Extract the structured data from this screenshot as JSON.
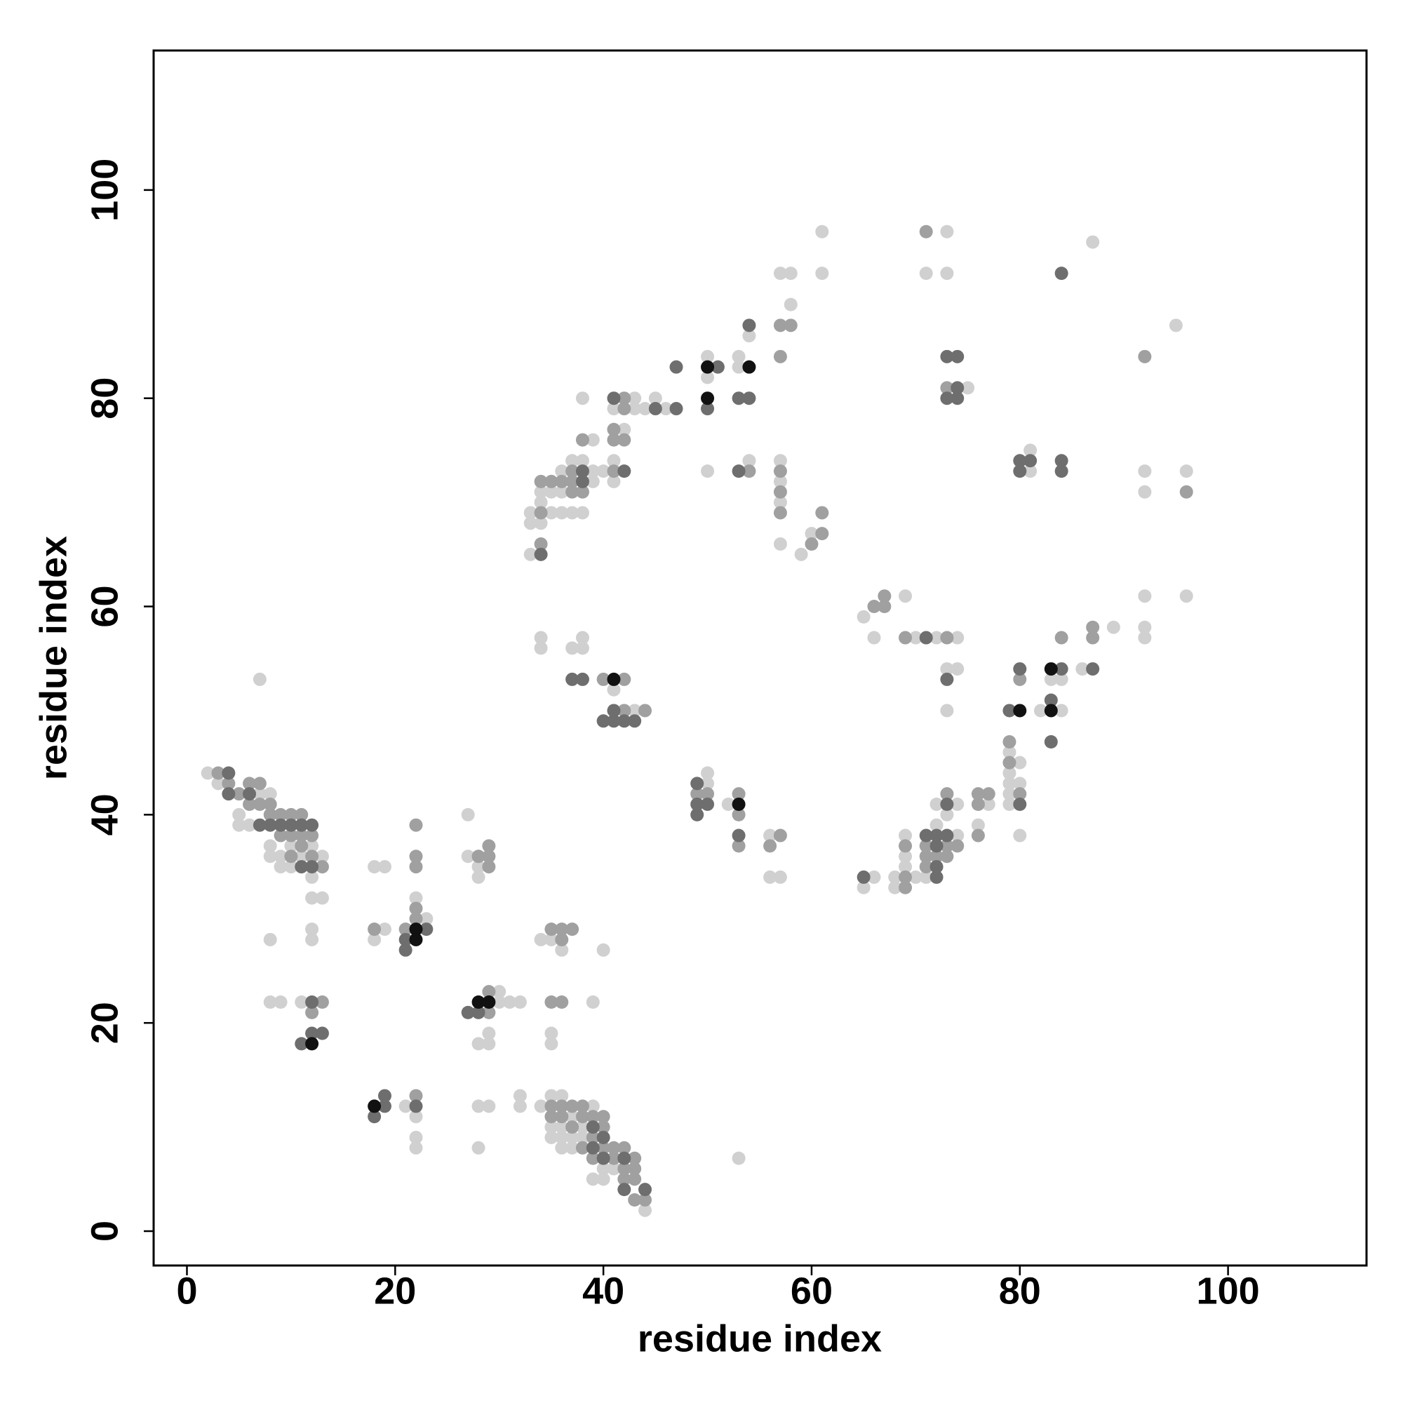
{
  "chart_data": {
    "type": "scatter",
    "xlabel": "residue index",
    "ylabel": "residue index",
    "xlim": [
      -3.2,
      113.3
    ],
    "ylim": [
      -3.3,
      113.4
    ],
    "xticks": [
      0,
      20,
      40,
      60,
      80,
      100
    ],
    "yticks": [
      0,
      20,
      40,
      60,
      80,
      100
    ],
    "grid": false,
    "series": [
      {
        "color": "#d0d0d0",
        "x": [
          2,
          3,
          5,
          5,
          6,
          7,
          8,
          8,
          8,
          9,
          9,
          10,
          10,
          11,
          12,
          12,
          13,
          12,
          13,
          7,
          12,
          12,
          11,
          8,
          9,
          8,
          18,
          19,
          19,
          18,
          23,
          22,
          21,
          22,
          22,
          22,
          27,
          27,
          28,
          28,
          30,
          30,
          31,
          32,
          29,
          28,
          29,
          28,
          29,
          28,
          32,
          32,
          34,
          35,
          35,
          35,
          36,
          36,
          36,
          36,
          37,
          37,
          37,
          38,
          38,
          39,
          39,
          40,
          40,
          41,
          44,
          34,
          35,
          36,
          35,
          35,
          39,
          40,
          53,
          33,
          33,
          33,
          34,
          34,
          34,
          35,
          35,
          36,
          36,
          36,
          37,
          37,
          38,
          38,
          38,
          39,
          39,
          39,
          40,
          41,
          41,
          41,
          42,
          43,
          43,
          44,
          45,
          46,
          34,
          34,
          37,
          38,
          38,
          41,
          43,
          50,
          50,
          52,
          50,
          50,
          50,
          53,
          53,
          54,
          54,
          56,
          56,
          57,
          57,
          57,
          57,
          57,
          59,
          60,
          58,
          57,
          58,
          61,
          61,
          65,
          66,
          68,
          68,
          69,
          69,
          69,
          70,
          71,
          72,
          72,
          73,
          74,
          74,
          76,
          77,
          65,
          66,
          69,
          70,
          72,
          74,
          73,
          74,
          73,
          73,
          71,
          73,
          75,
          79,
          80,
          79,
          79,
          80,
          79,
          79,
          80,
          82,
          84,
          83,
          84,
          86,
          89,
          92,
          92,
          92,
          96,
          81,
          81,
          87,
          95,
          92,
          92,
          96
        ],
        "values": [
          44,
          43,
          40,
          39,
          39,
          42,
          42,
          37,
          36,
          36,
          35,
          35,
          37,
          36,
          37,
          34,
          36,
          32,
          32,
          53,
          29,
          28,
          22,
          22,
          22,
          28,
          35,
          35,
          29,
          28,
          30,
          32,
          12,
          11,
          9,
          8,
          40,
          36,
          35,
          34,
          23,
          22,
          22,
          22,
          19,
          18,
          18,
          12,
          12,
          8,
          13,
          12,
          12,
          13,
          10,
          9,
          13,
          10,
          9,
          8,
          11,
          9,
          8,
          10,
          9,
          12,
          5,
          6,
          5,
          6,
          2,
          28,
          28,
          27,
          19,
          18,
          22,
          27,
          7,
          69,
          68,
          65,
          71,
          70,
          68,
          71,
          69,
          73,
          71,
          69,
          74,
          69,
          74,
          69,
          80,
          76,
          73,
          72,
          73,
          79,
          74,
          72,
          77,
          80,
          79,
          79,
          80,
          79,
          57,
          56,
          56,
          57,
          56,
          52,
          50,
          44,
          43,
          41,
          84,
          82,
          73,
          84,
          83,
          86,
          74,
          38,
          34,
          34,
          74,
          72,
          70,
          66,
          65,
          67,
          89,
          92,
          92,
          92,
          96,
          33,
          34,
          34,
          33,
          38,
          36,
          35,
          34,
          34,
          39,
          41,
          40,
          41,
          38,
          39,
          41,
          59,
          57,
          61,
          57,
          57,
          57,
          54,
          54,
          50,
          96,
          92,
          92,
          81,
          46,
          45,
          44,
          43,
          43,
          42,
          41,
          38,
          50,
          50,
          53,
          53,
          54,
          58,
          58,
          57,
          61,
          61,
          73,
          75,
          95,
          87,
          73,
          71,
          73
        ]
      },
      {
        "color": "#a0a0a0",
        "x": [
          3,
          4,
          5,
          6,
          7,
          6,
          7,
          8,
          8,
          9,
          10,
          11,
          9,
          10,
          11,
          11,
          10,
          12,
          12,
          13,
          12,
          13,
          18,
          21,
          22,
          22,
          22,
          22,
          22,
          22,
          28,
          29,
          29,
          29,
          29,
          29,
          35,
          35,
          36,
          36,
          37,
          37,
          38,
          38,
          38,
          39,
          39,
          39,
          40,
          40,
          40,
          41,
          41,
          42,
          42,
          42,
          43,
          43,
          43,
          43,
          44,
          35,
          36,
          36,
          37,
          35,
          36,
          34,
          34,
          34,
          35,
          36,
          37,
          37,
          37,
          38,
          38,
          41,
          41,
          41,
          42,
          42,
          42,
          40,
          42,
          42,
          44,
          49,
          50,
          53,
          53,
          53,
          54,
          57,
          56,
          57,
          57,
          57,
          60,
          61,
          61,
          57,
          57,
          58,
          69,
          69,
          69,
          71,
          71,
          71,
          72,
          73,
          73,
          73,
          74,
          76,
          76,
          76,
          77,
          66,
          67,
          67,
          69,
          73,
          71,
          73,
          79,
          79,
          80,
          80,
          84,
          87,
          87,
          92,
          96
        ],
        "values": [
          44,
          43,
          42,
          43,
          43,
          41,
          41,
          40,
          41,
          40,
          40,
          40,
          38,
          38,
          38,
          37,
          36,
          36,
          38,
          35,
          21,
          22,
          29,
          29,
          30,
          31,
          35,
          36,
          39,
          13,
          36,
          37,
          36,
          35,
          23,
          21,
          12,
          11,
          12,
          11,
          12,
          10,
          12,
          11,
          8,
          11,
          9,
          7,
          11,
          10,
          8,
          8,
          7,
          8,
          6,
          5,
          7,
          6,
          5,
          3,
          3,
          29,
          29,
          28,
          29,
          22,
          22,
          72,
          69,
          66,
          72,
          72,
          73,
          72,
          71,
          71,
          76,
          77,
          76,
          73,
          80,
          79,
          76,
          53,
          53,
          50,
          50,
          42,
          42,
          42,
          40,
          37,
          73,
          38,
          37,
          73,
          71,
          69,
          66,
          67,
          69,
          84,
          87,
          87,
          37,
          34,
          33,
          37,
          36,
          35,
          36,
          42,
          37,
          36,
          37,
          42,
          41,
          38,
          42,
          60,
          61,
          60,
          57,
          57,
          96,
          81,
          47,
          45,
          42,
          53,
          57,
          57,
          58,
          84,
          71
        ]
      },
      {
        "color": "#6e6e6e",
        "x": [
          4,
          4,
          7,
          8,
          9,
          10,
          11,
          11,
          12,
          12,
          6,
          12,
          12,
          13,
          11,
          21,
          21,
          23,
          18,
          19,
          19,
          22,
          27,
          28,
          39,
          39,
          40,
          40,
          42,
          42,
          44,
          34,
          38,
          38,
          41,
          42,
          45,
          47,
          47,
          37,
          38,
          40,
          41,
          41,
          42,
          43,
          49,
          49,
          49,
          50,
          53,
          51,
          50,
          54,
          53,
          54,
          53,
          65,
          71,
          72,
          72,
          72,
          72,
          73,
          73,
          71,
          73,
          73,
          74,
          74,
          73,
          74,
          79,
          80,
          80,
          83,
          84,
          83,
          87,
          80,
          81,
          80,
          84,
          84,
          84
        ],
        "values": [
          44,
          42,
          39,
          39,
          39,
          39,
          39,
          35,
          39,
          35,
          42,
          22,
          19,
          19,
          18,
          28,
          27,
          29,
          11,
          12,
          13,
          12,
          21,
          21,
          10,
          8,
          9,
          7,
          7,
          4,
          4,
          65,
          73,
          72,
          80,
          73,
          79,
          79,
          83,
          53,
          53,
          49,
          50,
          49,
          49,
          49,
          43,
          41,
          40,
          41,
          38,
          83,
          79,
          87,
          80,
          80,
          73,
          34,
          38,
          38,
          37,
          35,
          34,
          41,
          38,
          57,
          53,
          84,
          84,
          81,
          80,
          80,
          50,
          54,
          41,
          51,
          54,
          47,
          54,
          74,
          74,
          73,
          74,
          73,
          92
        ]
      },
      {
        "color": "#111111",
        "x": [
          12,
          22,
          22,
          18,
          28,
          29,
          41,
          53,
          50,
          50,
          54,
          83,
          80,
          83
        ],
        "values": [
          18,
          29,
          28,
          12,
          22,
          22,
          53,
          41,
          83,
          80,
          83,
          50,
          50,
          54
        ]
      }
    ]
  }
}
